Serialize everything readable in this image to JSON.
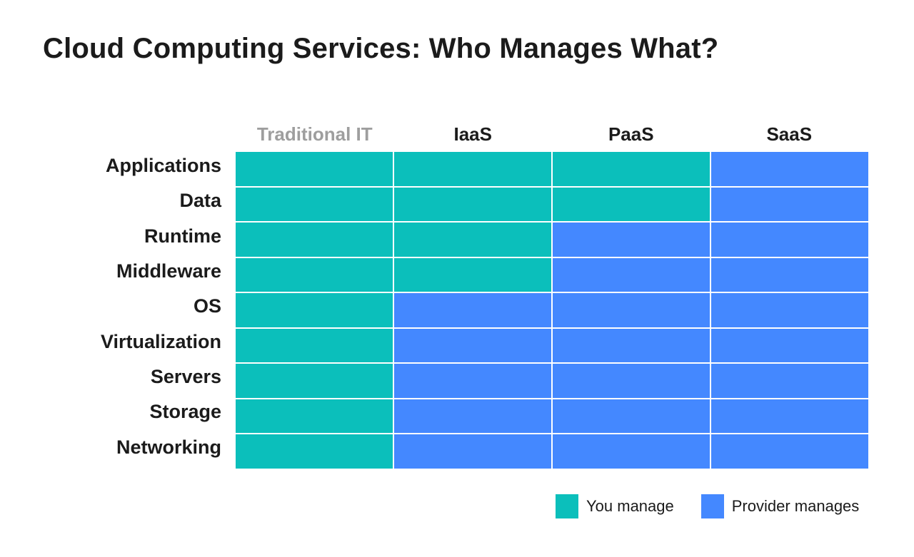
{
  "title": "Cloud Computing Services: Who Manages What?",
  "colors": {
    "you_manage": "#0bbfbb",
    "provider_manages": "#4488ff",
    "muted_header": "#9e9e9e"
  },
  "columns": [
    {
      "label": "Traditional IT",
      "muted": true
    },
    {
      "label": "IaaS",
      "muted": false
    },
    {
      "label": "PaaS",
      "muted": false
    },
    {
      "label": "SaaS",
      "muted": false
    }
  ],
  "rows": [
    {
      "label": "Applications",
      "managed_by": [
        "you",
        "you",
        "you",
        "provider"
      ]
    },
    {
      "label": "Data",
      "managed_by": [
        "you",
        "you",
        "you",
        "provider"
      ]
    },
    {
      "label": "Runtime",
      "managed_by": [
        "you",
        "you",
        "provider",
        "provider"
      ]
    },
    {
      "label": "Middleware",
      "managed_by": [
        "you",
        "you",
        "provider",
        "provider"
      ]
    },
    {
      "label": "OS",
      "managed_by": [
        "you",
        "provider",
        "provider",
        "provider"
      ]
    },
    {
      "label": "Virtualization",
      "managed_by": [
        "you",
        "provider",
        "provider",
        "provider"
      ]
    },
    {
      "label": "Servers",
      "managed_by": [
        "you",
        "provider",
        "provider",
        "provider"
      ]
    },
    {
      "label": "Storage",
      "managed_by": [
        "you",
        "provider",
        "provider",
        "provider"
      ]
    },
    {
      "label": "Networking",
      "managed_by": [
        "you",
        "provider",
        "provider",
        "provider"
      ]
    }
  ],
  "legend": {
    "you_label": "You manage",
    "provider_label": "Provider manages"
  }
}
